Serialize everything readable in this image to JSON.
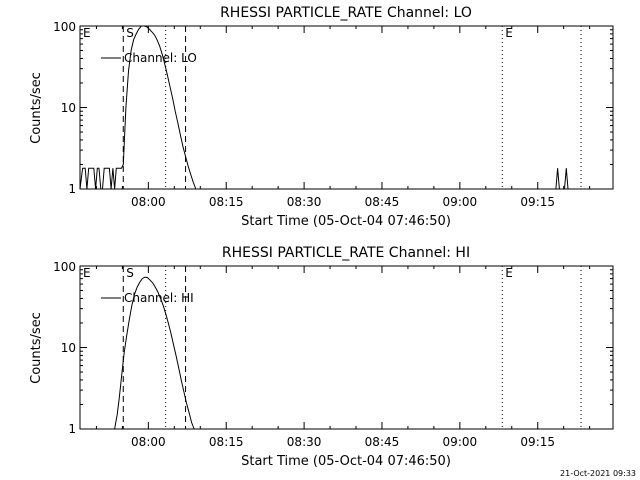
{
  "chart_data": [
    {
      "type": "line",
      "title": "RHESSI PARTICLE_RATE Channel: LO",
      "xlabel": "Start Time (05-Oct-04 07:46:50)",
      "ylabel": "Counts/sec",
      "yscale": "log",
      "ylim": [
        1,
        100
      ],
      "xlim": [
        "07:46:50",
        "09:29:30"
      ],
      "x_tick_labels": [
        "08:00",
        "08:15",
        "08:30",
        "08:45",
        "09:00",
        "09:15"
      ],
      "y_tick_labels": [
        "1",
        "10",
        "100"
      ],
      "grid": false,
      "legend": {
        "position": "top-left",
        "label": "Channel: LO"
      },
      "markers": [
        {
          "label": "E",
          "x": "07:46:50",
          "style": "dotted"
        },
        {
          "label": "S",
          "x": "07:55:10",
          "style": "dashed"
        },
        {
          "label": "",
          "x": "08:03:20",
          "style": "dotted"
        },
        {
          "label": "",
          "x": "08:07:10",
          "style": "dashed"
        },
        {
          "label": "E",
          "x": "09:08:10",
          "style": "dotted"
        },
        {
          "label": "",
          "x": "09:23:20",
          "style": "dotted"
        }
      ],
      "series": [
        {
          "name": "Channel: LO",
          "x": [
            "07:46:50",
            "07:47:20",
            "07:47:50",
            "07:48:10",
            "07:48:30",
            "07:48:50",
            "07:49:10",
            "07:49:30",
            "07:49:50",
            "07:50:10",
            "07:50:30",
            "07:50:50",
            "07:51:10",
            "07:51:30",
            "07:51:50",
            "07:52:10",
            "07:52:30",
            "07:52:50",
            "07:53:10",
            "07:53:30",
            "07:53:50",
            "07:54:10",
            "07:54:30",
            "07:54:50",
            "07:55:10",
            "07:55:40",
            "07:56:10",
            "07:56:40",
            "07:57:10",
            "07:57:40",
            "07:58:10",
            "07:58:40",
            "07:59:10",
            "07:59:40",
            "08:00:10",
            "08:00:40",
            "08:01:10",
            "08:01:40",
            "08:02:10",
            "08:02:40",
            "08:03:10",
            "08:03:40",
            "08:04:10",
            "08:04:40",
            "08:05:10",
            "08:05:40",
            "08:06:10",
            "08:06:40",
            "08:07:10",
            "08:07:40",
            "08:08:10",
            "08:08:40",
            "08:09:10",
            "09:18:30",
            "09:18:50",
            "09:19:10",
            "09:20:10",
            "09:20:30",
            "09:20:50"
          ],
          "y": [
            1,
            1.8,
            1.8,
            1,
            1.8,
            1.8,
            1.8,
            1.8,
            1,
            1.8,
            1.8,
            1,
            1,
            1.8,
            1.8,
            1.8,
            1.8,
            1,
            1.8,
            1,
            1.8,
            1.8,
            1.8,
            1.8,
            2,
            10,
            28,
            50,
            68,
            80,
            92,
            100,
            100,
            98,
            92,
            85,
            78,
            68,
            57,
            45,
            34,
            25,
            18,
            13,
            9,
            6.5,
            4.6,
            3.3,
            2.5,
            1.9,
            1.5,
            1.2,
            1,
            1,
            1.8,
            1,
            1,
            1.8,
            1
          ]
        }
      ]
    },
    {
      "type": "line",
      "title": "RHESSI PARTICLE_RATE Channel: HI",
      "xlabel": "Start Time (05-Oct-04 07:46:50)",
      "ylabel": "Counts/sec",
      "yscale": "log",
      "ylim": [
        1,
        100
      ],
      "xlim": [
        "07:46:50",
        "09:29:30"
      ],
      "x_tick_labels": [
        "08:00",
        "08:15",
        "08:30",
        "08:45",
        "09:00",
        "09:15"
      ],
      "y_tick_labels": [
        "1",
        "10",
        "100"
      ],
      "grid": false,
      "legend": {
        "position": "top-left",
        "label": "Channel: HI"
      },
      "markers": [
        {
          "label": "E",
          "x": "07:46:50",
          "style": "dotted"
        },
        {
          "label": "S",
          "x": "07:55:10",
          "style": "dashed"
        },
        {
          "label": "",
          "x": "08:03:20",
          "style": "dotted"
        },
        {
          "label": "",
          "x": "08:07:10",
          "style": "dashed"
        },
        {
          "label": "E",
          "x": "09:08:10",
          "style": "dotted"
        },
        {
          "label": "",
          "x": "09:23:20",
          "style": "dotted"
        }
      ],
      "series": [
        {
          "name": "Channel: HI",
          "x": [
            "07:53:30",
            "07:54:00",
            "07:54:20",
            "07:54:40",
            "07:55:00",
            "07:55:20",
            "07:55:50",
            "07:56:20",
            "07:56:50",
            "07:57:20",
            "07:57:50",
            "07:58:20",
            "07:58:50",
            "07:59:20",
            "07:59:50",
            "08:00:20",
            "08:00:50",
            "08:01:20",
            "08:01:50",
            "08:02:20",
            "08:02:50",
            "08:03:20",
            "08:03:50",
            "08:04:20",
            "08:04:50",
            "08:05:20",
            "08:05:50",
            "08:06:20",
            "08:06:50",
            "08:07:20",
            "08:07:50",
            "08:08:20",
            "08:08:50"
          ],
          "y": [
            1,
            1.5,
            2.2,
            3.5,
            5.5,
            8.5,
            14,
            22,
            33,
            45,
            55,
            63,
            70,
            73,
            72,
            67,
            62,
            55,
            48,
            40,
            33,
            26,
            20,
            15,
            11,
            8,
            5.7,
            4,
            2.9,
            2.1,
            1.6,
            1.2,
            1
          ]
        }
      ]
    }
  ],
  "footer": {
    "timestamp": "21-Oct-2021 09:33"
  }
}
